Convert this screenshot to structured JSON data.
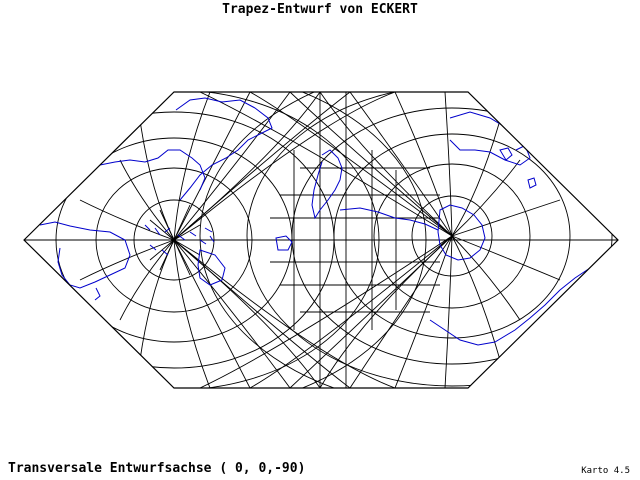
{
  "map": {
    "title": "Trapez-Entwurf von ECKERT",
    "subtitle": "Transversale Entwurfsachse ( 0, 0,-90)",
    "version": "Karto 4.5",
    "colors": {
      "background": "#ffffff",
      "frame": "#000000",
      "graticule": "#000000",
      "coastline": "#0000cc"
    }
  }
}
